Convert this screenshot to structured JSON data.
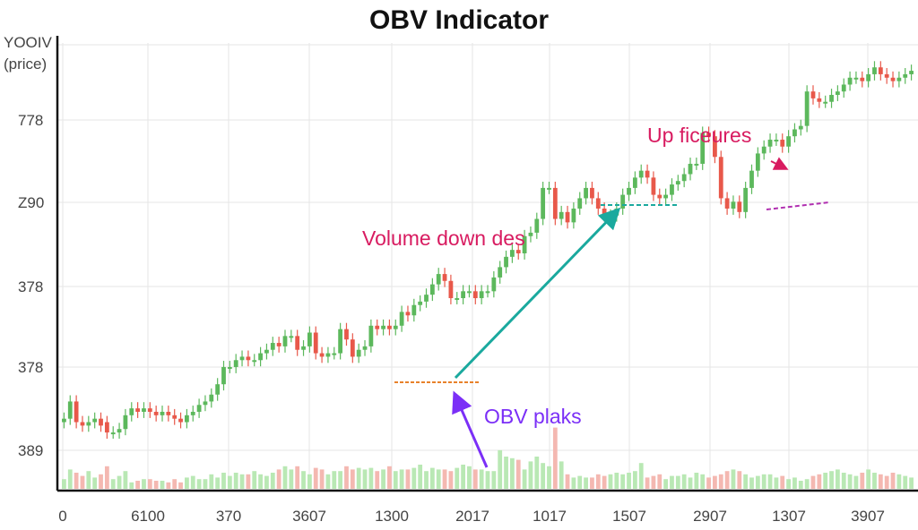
{
  "chart_data": {
    "type": "candlestick",
    "title": "OBV Indicator",
    "ylabel_lines": [
      "YOOIV",
      "(price)"
    ],
    "ytick_labels": [
      "778",
      "Z90",
      "378",
      "378",
      "389"
    ],
    "xtick_labels": [
      "0",
      "6100",
      "370",
      "3607",
      "1300",
      "2017",
      "1017",
      "1507",
      "2907",
      "1307",
      "3907"
    ],
    "x": [
      0,
      1,
      2,
      3,
      4,
      5,
      6,
      7,
      8,
      9,
      10,
      11,
      12,
      13,
      14,
      15,
      16,
      17,
      18,
      19,
      20,
      21,
      22,
      23,
      24,
      25,
      26,
      27,
      28,
      29,
      30,
      31,
      32,
      33,
      34,
      35,
      36,
      37,
      38,
      39,
      40,
      41,
      42,
      43,
      44,
      45,
      46,
      47,
      48,
      49,
      50,
      51,
      52,
      53,
      54,
      55,
      56,
      57,
      58,
      59,
      60,
      61,
      62,
      63,
      64,
      65,
      66,
      67,
      68,
      69,
      70,
      71,
      72,
      73,
      74,
      75,
      76,
      77,
      78,
      79,
      80,
      81,
      82,
      83,
      84,
      85,
      86,
      87,
      88,
      89,
      90,
      91,
      92,
      93,
      94,
      95,
      96,
      97,
      98,
      99,
      100,
      101,
      102,
      103,
      104,
      105,
      106,
      107,
      108,
      109,
      110,
      111,
      112,
      113,
      114,
      115,
      116,
      117,
      118,
      119,
      120,
      121,
      122,
      123,
      124,
      125,
      126,
      127,
      128,
      129,
      130,
      131,
      132,
      133,
      134,
      135,
      136,
      137,
      138
    ],
    "open": [
      2.0,
      2.1,
      2.6,
      2.0,
      1.9,
      2.0,
      2.1,
      2.0,
      1.7,
      1.7,
      1.8,
      2.2,
      2.4,
      2.3,
      2.4,
      2.3,
      2.2,
      2.3,
      2.2,
      2.1,
      2.0,
      2.2,
      2.3,
      2.5,
      2.6,
      2.8,
      3.1,
      3.6,
      3.6,
      3.8,
      3.9,
      3.8,
      3.8,
      4.0,
      4.1,
      4.3,
      4.2,
      4.5,
      4.5,
      4.1,
      4.2,
      4.6,
      4.0,
      3.9,
      4.0,
      4.0,
      4.7,
      4.4,
      3.9,
      4.1,
      4.2,
      4.8,
      4.7,
      4.8,
      4.7,
      4.8,
      5.2,
      5.1,
      5.4,
      5.5,
      5.7,
      6.0,
      6.3,
      6.1,
      5.6,
      5.6,
      5.8,
      5.8,
      5.6,
      5.8,
      5.8,
      6.2,
      6.5,
      6.8,
      7.0,
      6.9,
      7.4,
      7.5,
      7.9,
      8.8,
      8.8,
      7.9,
      8.1,
      7.8,
      8.2,
      8.5,
      8.8,
      8.5,
      8.2,
      8.0,
      8.0,
      8.2,
      8.6,
      8.8,
      9.1,
      9.3,
      9.1,
      8.6,
      8.5,
      8.6,
      8.9,
      9.0,
      9.2,
      9.5,
      9.5,
      10.4,
      10.3,
      9.7,
      8.5,
      8.2,
      8.4,
      8.1,
      8.8,
      9.3,
      9.8,
      10.0,
      10.2,
      10.2,
      10.0,
      10.3,
      10.5,
      10.6,
      11.6,
      11.4,
      11.3,
      11.3,
      11.5,
      11.6,
      11.8,
      12.0,
      12.0,
      11.9,
      12.1,
      12.3,
      12.1,
      12.0,
      11.9,
      12.0,
      12.1
    ],
    "close": [
      2.1,
      2.6,
      2.0,
      1.9,
      2.0,
      2.1,
      1.9,
      1.7,
      1.7,
      1.8,
      2.2,
      2.4,
      2.3,
      2.4,
      2.3,
      2.2,
      2.3,
      2.2,
      2.1,
      2.0,
      2.2,
      2.3,
      2.5,
      2.6,
      2.8,
      3.1,
      3.6,
      3.6,
      3.8,
      3.9,
      3.8,
      3.8,
      4.0,
      4.1,
      4.3,
      4.2,
      4.5,
      4.5,
      4.1,
      4.2,
      4.6,
      4.0,
      3.9,
      4.0,
      4.0,
      4.7,
      4.4,
      3.9,
      4.1,
      4.2,
      4.8,
      4.7,
      4.8,
      4.7,
      4.8,
      5.2,
      5.1,
      5.4,
      5.5,
      5.7,
      6.0,
      6.3,
      6.1,
      5.6,
      5.6,
      5.8,
      5.8,
      5.6,
      5.8,
      5.8,
      6.2,
      6.5,
      6.8,
      7.0,
      6.9,
      7.4,
      7.5,
      7.9,
      8.8,
      8.8,
      7.9,
      8.1,
      7.8,
      8.2,
      8.5,
      8.8,
      8.5,
      8.2,
      8.0,
      8.0,
      8.2,
      8.6,
      8.8,
      9.1,
      9.3,
      9.1,
      8.6,
      8.5,
      8.6,
      8.9,
      9.0,
      9.2,
      9.5,
      9.5,
      10.4,
      10.3,
      9.7,
      8.5,
      8.2,
      8.4,
      8.1,
      8.8,
      9.3,
      9.8,
      10.0,
      10.2,
      10.2,
      10.0,
      10.3,
      10.5,
      10.6,
      11.6,
      11.4,
      11.3,
      11.3,
      11.5,
      11.6,
      11.8,
      12.0,
      12.0,
      11.9,
      12.1,
      12.3,
      12.1,
      12.0,
      11.9,
      12.0,
      12.1,
      12.2
    ],
    "volume": [
      0.3,
      0.6,
      0.5,
      0.4,
      0.55,
      0.35,
      0.45,
      0.7,
      0.3,
      0.4,
      0.55,
      0.2,
      0.25,
      0.3,
      0.3,
      0.25,
      0.25,
      0.2,
      0.3,
      0.2,
      0.35,
      0.4,
      0.3,
      0.3,
      0.45,
      0.35,
      0.5,
      0.4,
      0.5,
      0.45,
      0.45,
      0.55,
      0.45,
      0.4,
      0.5,
      0.6,
      0.7,
      0.6,
      0.7,
      0.55,
      0.45,
      0.65,
      0.6,
      0.45,
      0.55,
      0.55,
      0.7,
      0.6,
      0.65,
      0.6,
      0.65,
      0.55,
      0.6,
      0.7,
      0.55,
      0.6,
      0.6,
      0.65,
      0.75,
      0.55,
      0.65,
      0.6,
      0.6,
      0.55,
      0.65,
      0.75,
      0.7,
      0.6,
      0.6,
      0.55,
      0.55,
      1.2,
      1.0,
      0.95,
      0.9,
      0.6,
      0.85,
      1.0,
      0.8,
      0.7,
      1.9,
      0.85,
      0.45,
      0.35,
      0.4,
      0.35,
      0.35,
      0.45,
      0.4,
      0.45,
      0.5,
      0.45,
      0.5,
      0.55,
      0.8,
      0.35,
      0.4,
      0.45,
      0.3,
      0.4,
      0.4,
      0.45,
      0.35,
      0.5,
      0.45,
      0.35,
      0.4,
      0.45,
      0.55,
      0.6,
      0.55,
      0.45,
      0.35,
      0.4,
      0.45,
      0.45,
      0.35,
      0.4,
      0.3,
      0.35,
      0.25,
      0.3,
      0.4,
      0.45,
      0.5,
      0.55,
      0.6,
      0.5,
      0.45,
      0.4,
      0.5,
      0.6,
      0.5,
      0.45,
      0.4,
      0.5,
      0.45,
      0.4,
      0.35
    ],
    "colors": {
      "up": "#5cb85c",
      "down": "#e8584a",
      "volume_up": "#b9e8b4",
      "volume_down": "#f4b8b1",
      "grid": "#e6e6e6",
      "axis": "#111111"
    },
    "grid": true,
    "annotations": {
      "volume_down": {
        "text": "Volume down des",
        "color": "#d81b60"
      },
      "up_features": {
        "text": "Up ficeures",
        "color": "#d81b60"
      },
      "obv_peaks": {
        "text": "OBV plaks",
        "color": "#7b2ff7"
      }
    }
  }
}
